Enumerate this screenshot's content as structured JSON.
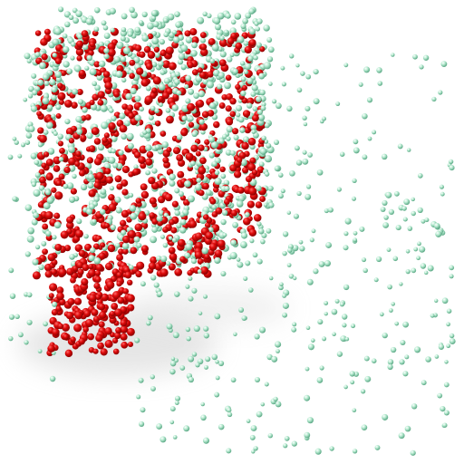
{
  "scene": {
    "description_visible_text": "",
    "background": "#ffffff",
    "primary_color": "#d40000",
    "secondary_color": "#a9e3c6",
    "primary_particle_count_estimate": 900,
    "secondary_particle_count_estimate": 1200
  }
}
